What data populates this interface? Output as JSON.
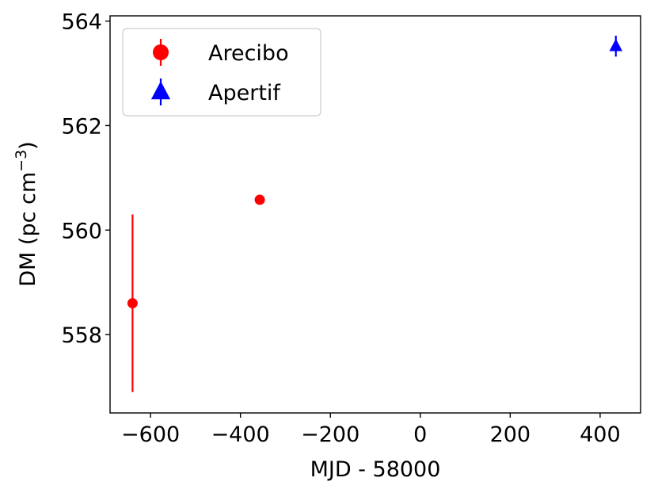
{
  "chart_data": {
    "type": "scatter",
    "title": "",
    "xlabel": "MJD - 58000",
    "ylabel": "DM (pc cm",
    "ylabel_superscript": "−3",
    "ylabel_suffix": ")",
    "xlim": [
      -690,
      490
    ],
    "ylim": [
      556.5,
      564.1
    ],
    "xticks": [
      -600,
      -400,
      -200,
      0,
      200,
      400
    ],
    "xtick_labels": [
      "−600",
      "−400",
      "−200",
      "0",
      "200",
      "400"
    ],
    "yticks": [
      558,
      560,
      562,
      564
    ],
    "ytick_labels": [
      "558",
      "560",
      "562",
      "564"
    ],
    "grid": false,
    "legend_position": "top-left",
    "series": [
      {
        "name": "Arecibo",
        "marker": "circle",
        "color": "#ff0000",
        "points": [
          {
            "x": -640,
            "y": 558.6,
            "yerr": 1.7
          },
          {
            "x": -357,
            "y": 560.58,
            "yerr": 0.05
          }
        ]
      },
      {
        "name": "Apertif",
        "marker": "triangle",
        "color": "#0000ff",
        "points": [
          {
            "x": 435,
            "y": 563.52,
            "yerr": 0.2
          }
        ]
      }
    ]
  }
}
